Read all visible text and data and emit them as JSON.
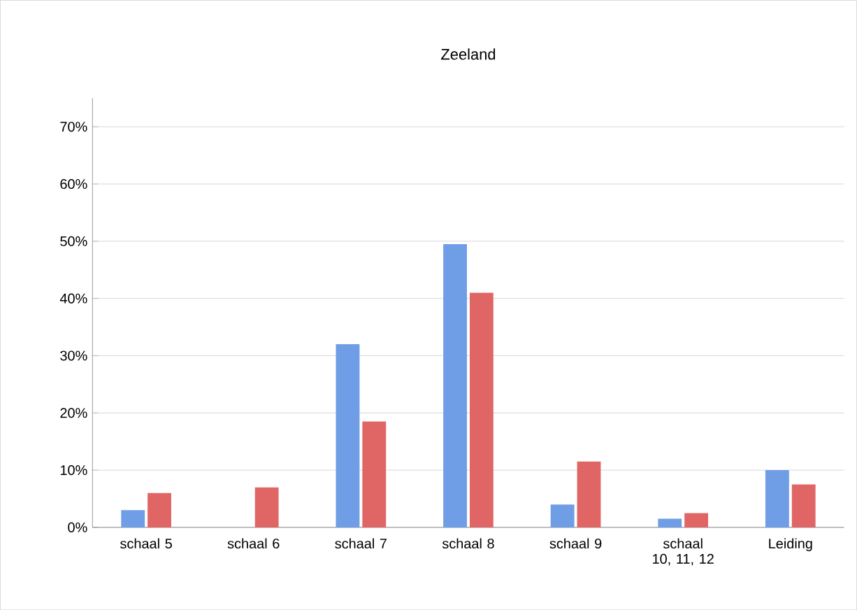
{
  "chart_data": {
    "type": "bar",
    "title": "Zeeland",
    "categories": [
      "schaal 5",
      "schaal 6",
      "schaal 7",
      "schaal 8",
      "schaal 9",
      "schaal 10, 11, 12",
      "Leiding"
    ],
    "series": [
      {
        "color": "#6f9de6",
        "values": [
          3,
          0,
          32,
          49.5,
          4,
          1.5,
          10
        ]
      },
      {
        "color": "#e06666",
        "values": [
          6,
          7,
          18.5,
          41,
          11.5,
          2.5,
          7.5
        ]
      }
    ],
    "ylim": [
      0,
      75
    ],
    "yticks": [
      {
        "value": 0,
        "label": "0%"
      },
      {
        "value": 10,
        "label": "10%"
      },
      {
        "value": 20,
        "label": "20%"
      },
      {
        "value": 30,
        "label": "30%"
      },
      {
        "value": 40,
        "label": "40%"
      },
      {
        "value": 50,
        "label": "50%"
      },
      {
        "value": 60,
        "label": "60%"
      },
      {
        "value": 70,
        "label": "70%"
      }
    ],
    "grid": "y"
  }
}
